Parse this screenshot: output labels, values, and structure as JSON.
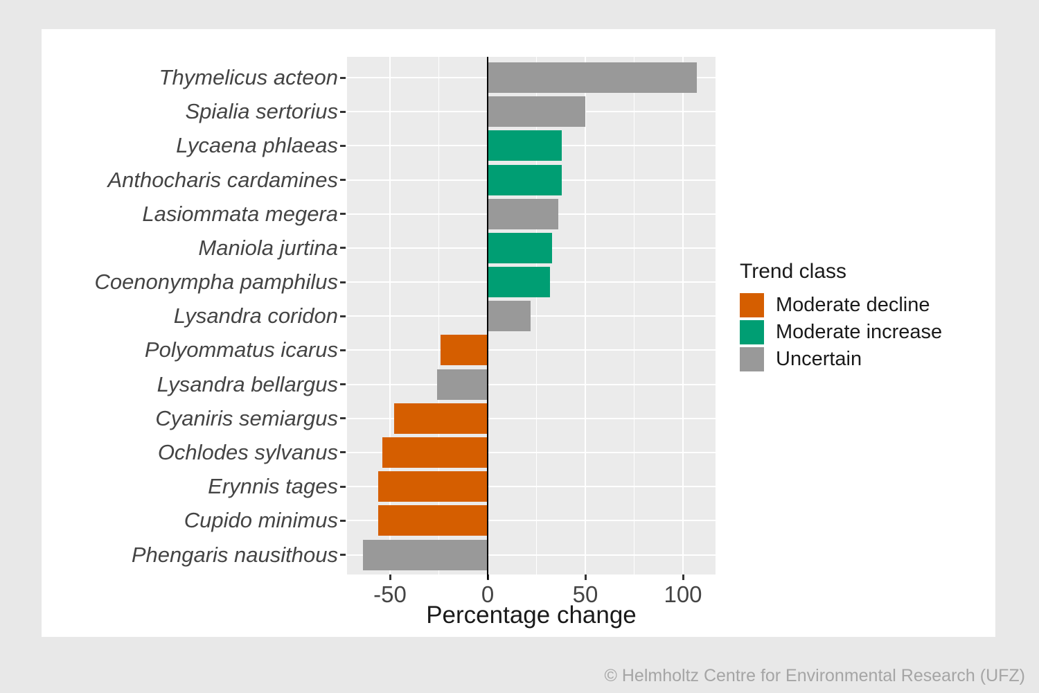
{
  "page": {
    "background_color": "#e8e8e8",
    "card_color": "#ffffff"
  },
  "chart_data": {
    "type": "bar",
    "orientation": "horizontal",
    "title": "",
    "xlabel": "Percentage change",
    "ylabel": "",
    "xlim": [
      -72,
      117
    ],
    "x_ticks": [
      -50,
      0,
      50,
      100
    ],
    "x_minor_gridlines": [
      -25,
      25,
      75
    ],
    "grid": "white major/minor gridlines on gray panel",
    "legend_position": "right",
    "panel_background": "#ebebeb",
    "zero_line_color": "#000000",
    "categories": [
      "Thymelicus acteon",
      "Spialia sertorius",
      "Lycaena phlaeas",
      "Anthocharis cardamines",
      "Lasiommata megera",
      "Maniola jurtina",
      "Coenonympha pamphilus",
      "Lysandra coridon",
      "Polyommatus icarus",
      "Lysandra bellargus",
      "Cyaniris semiargus",
      "Ochlodes sylvanus",
      "Erynnis tages",
      "Cupido minimus",
      "Phengaris nausithous"
    ],
    "values": [
      107,
      50,
      38,
      38,
      36,
      33,
      32,
      22,
      -24,
      -26,
      -48,
      -54,
      -56,
      -56,
      -64
    ],
    "trend_class": [
      "Uncertain",
      "Uncertain",
      "Moderate increase",
      "Moderate increase",
      "Uncertain",
      "Moderate increase",
      "Moderate increase",
      "Uncertain",
      "Moderate decline",
      "Uncertain",
      "Moderate decline",
      "Moderate decline",
      "Moderate decline",
      "Moderate decline",
      "Uncertain"
    ],
    "class_colors": {
      "Moderate decline": "#D55E00",
      "Moderate increase": "#009E73",
      "Uncertain": "#999999"
    }
  },
  "legend": {
    "title": "Trend class",
    "items": [
      {
        "label": "Moderate decline",
        "color": "#D55E00"
      },
      {
        "label": "Moderate increase",
        "color": "#009E73"
      },
      {
        "label": "Uncertain",
        "color": "#999999"
      }
    ]
  },
  "footer": {
    "credit": "© Helmholtz Centre for Environmental Research (UFZ)"
  }
}
